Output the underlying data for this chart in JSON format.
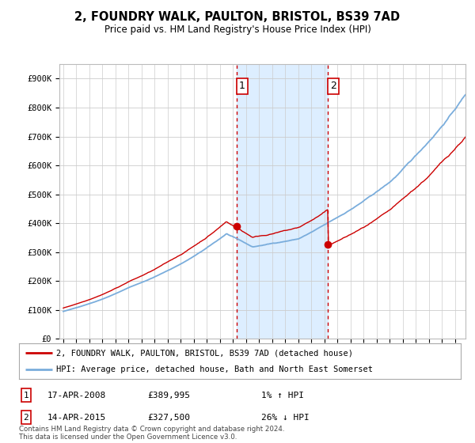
{
  "title": "2, FOUNDRY WALK, PAULTON, BRISTOL, BS39 7AD",
  "subtitle": "Price paid vs. HM Land Registry's House Price Index (HPI)",
  "ylim": [
    0,
    950000
  ],
  "yticks": [
    0,
    100000,
    200000,
    300000,
    400000,
    500000,
    600000,
    700000,
    800000,
    900000
  ],
  "ytick_labels": [
    "£0",
    "£100K",
    "£200K",
    "£300K",
    "£400K",
    "£500K",
    "£600K",
    "£700K",
    "£800K",
    "£900K"
  ],
  "sale1": {
    "date": 2008.29,
    "price": 389995,
    "label": "1"
  },
  "sale2": {
    "date": 2015.28,
    "price": 327500,
    "label": "2"
  },
  "annotation1": {
    "date_str": "17-APR-2008",
    "price_str": "£389,995",
    "hpi_str": "1% ↑ HPI"
  },
  "annotation2": {
    "date_str": "14-APR-2015",
    "price_str": "£327,500",
    "hpi_str": "26% ↓ HPI"
  },
  "legend_line1": "2, FOUNDRY WALK, PAULTON, BRISTOL, BS39 7AD (detached house)",
  "legend_line2": "HPI: Average price, detached house, Bath and North East Somerset",
  "footer": "Contains HM Land Registry data © Crown copyright and database right 2024.\nThis data is licensed under the Open Government Licence v3.0.",
  "line_color_red": "#cc0000",
  "line_color_blue": "#7aaddc",
  "highlight_color": "#ddeeff",
  "vline_color": "#cc0000",
  "background_color": "#ffffff",
  "grid_color": "#cccccc",
  "xlim_left": 1994.7,
  "xlim_right": 2025.8,
  "x_years_start": 1995,
  "x_years_end": 2025
}
